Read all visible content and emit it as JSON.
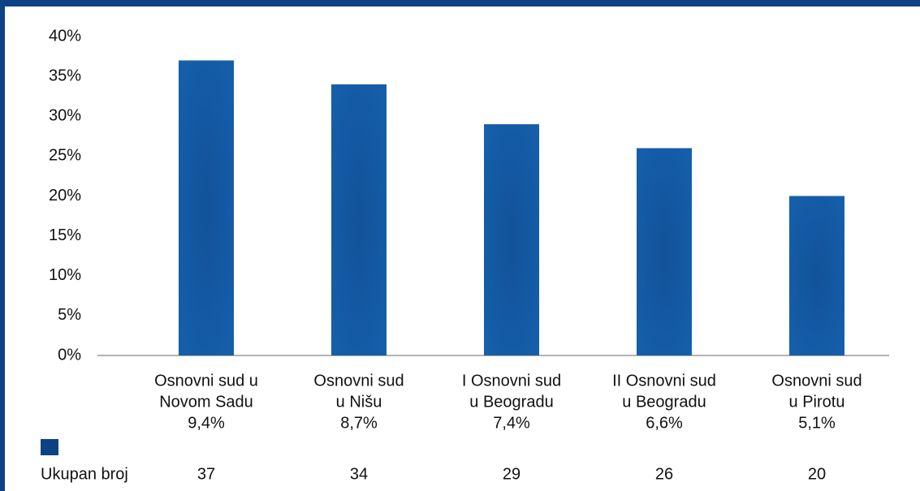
{
  "chart_data": {
    "type": "bar",
    "categories": [
      [
        "Osnovni sud u",
        "Novom Sadu",
        "9,4%"
      ],
      [
        "Osnovni sud",
        "u Nišu",
        "8,7%"
      ],
      [
        "I Osnovni sud",
        "u Beogradu",
        "7,4%"
      ],
      [
        "II Osnovni sud",
        "u Beogradu",
        "6,6%"
      ],
      [
        "Osnovni sud",
        "u Pirotu",
        "5,1%"
      ]
    ],
    "series": [
      {
        "name": "Ukupan broj",
        "color": "#0d4285",
        "values": [
          37,
          34,
          29,
          26,
          20
        ]
      }
    ],
    "ylim": [
      0,
      40
    ],
    "yticks": [
      {
        "value": 0,
        "label": "0%"
      },
      {
        "value": 5,
        "label": "5%"
      },
      {
        "value": 10,
        "label": "10%"
      },
      {
        "value": 15,
        "label": "15%"
      },
      {
        "value": 20,
        "label": "20%"
      },
      {
        "value": 25,
        "label": "25%"
      },
      {
        "value": 30,
        "label": "30%"
      },
      {
        "value": 35,
        "label": "35%"
      },
      {
        "value": 40,
        "label": "40%"
      }
    ],
    "grid": false
  }
}
